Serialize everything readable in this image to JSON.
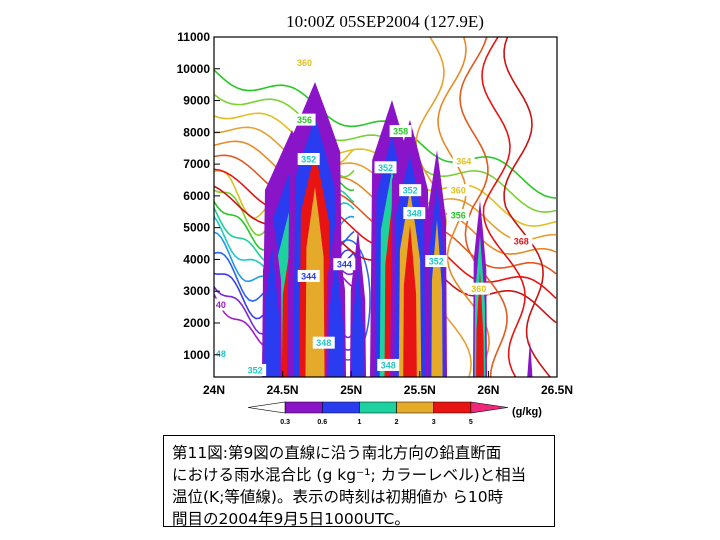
{
  "chart_data": {
    "type": "contour",
    "title": "10:00Z 05SEP2004 (127.9E)",
    "y_ticks": [
      "11000",
      "10000",
      "9000",
      "8000",
      "7000",
      "6000",
      "5000",
      "4000",
      "3000",
      "2000",
      "1000"
    ],
    "x_ticks": [
      "24N",
      "24.5N",
      "25N",
      "25.5N",
      "26N",
      "26.5N"
    ],
    "xlim": [
      24,
      26.5
    ],
    "ylim": [
      300,
      11000
    ],
    "shaded_field": {
      "unit": "(g/kg)",
      "colorbar_ticks": [
        "0.3",
        "0.6",
        "1",
        "2",
        "3",
        "5"
      ],
      "colors": [
        "#ffffff",
        "#8a14c8",
        "#2a3cf0",
        "#1ed2a0",
        "#e6aa2a",
        "#e81414",
        "#f0287a"
      ]
    },
    "contour_labels": [
      {
        "text": "360",
        "x": 24.66,
        "y": 10200,
        "color": "#e0c020"
      },
      {
        "text": "356",
        "x": 24.66,
        "y": 8400,
        "color": "#28c828"
      },
      {
        "text": "358",
        "x": 25.36,
        "y": 8040,
        "color": "#28c828"
      },
      {
        "text": "352",
        "x": 25.25,
        "y": 6900,
        "color": "#1ec8c8"
      },
      {
        "text": "352",
        "x": 24.69,
        "y": 7160,
        "color": "#1ec8c8"
      },
      {
        "text": "352",
        "x": 25.43,
        "y": 6180,
        "color": "#1ec8c8"
      },
      {
        "text": "348",
        "x": 25.46,
        "y": 5460,
        "color": "#1ec8c8"
      },
      {
        "text": "344",
        "x": 24.95,
        "y": 3850,
        "color": "#2a3cf0"
      },
      {
        "text": "344",
        "x": 24.69,
        "y": 3480,
        "color": "#2a3cf0"
      },
      {
        "text": "352",
        "x": 25.62,
        "y": 3950,
        "color": "#1ec8c8"
      },
      {
        "text": "364",
        "x": 25.82,
        "y": 7100,
        "color": "#e0c020"
      },
      {
        "text": "360",
        "x": 25.78,
        "y": 6180,
        "color": "#e0c020"
      },
      {
        "text": "356",
        "x": 25.78,
        "y": 5400,
        "color": "#28c828"
      },
      {
        "text": "368",
        "x": 26.24,
        "y": 4580,
        "color": "#e81414"
      },
      {
        "text": "360",
        "x": 25.93,
        "y": 3080,
        "color": "#e0c020"
      },
      {
        "text": "348",
        "x": 24.8,
        "y": 1380,
        "color": "#1ec8c8"
      },
      {
        "text": "40",
        "x": 24.05,
        "y": 2580,
        "color": "#a020c8"
      },
      {
        "text": "48",
        "x": 24.05,
        "y": 1040,
        "color": "#1ec8c8"
      },
      {
        "text": "352",
        "x": 24.3,
        "y": 520,
        "color": "#1ec8c8"
      },
      {
        "text": "348",
        "x": 25.27,
        "y": 680,
        "color": "#1ec8c8"
      }
    ]
  },
  "caption": {
    "text": "第11図:第9図の直線に沿う南北方向の鉛直断面\nにおける雨水混合比 (g kg⁻¹; カラーレベル)と相当\n温位(K;等値線)。表示の時刻は初期値か  ら10時\n間目の2004年9月5日1000UTC。"
  }
}
